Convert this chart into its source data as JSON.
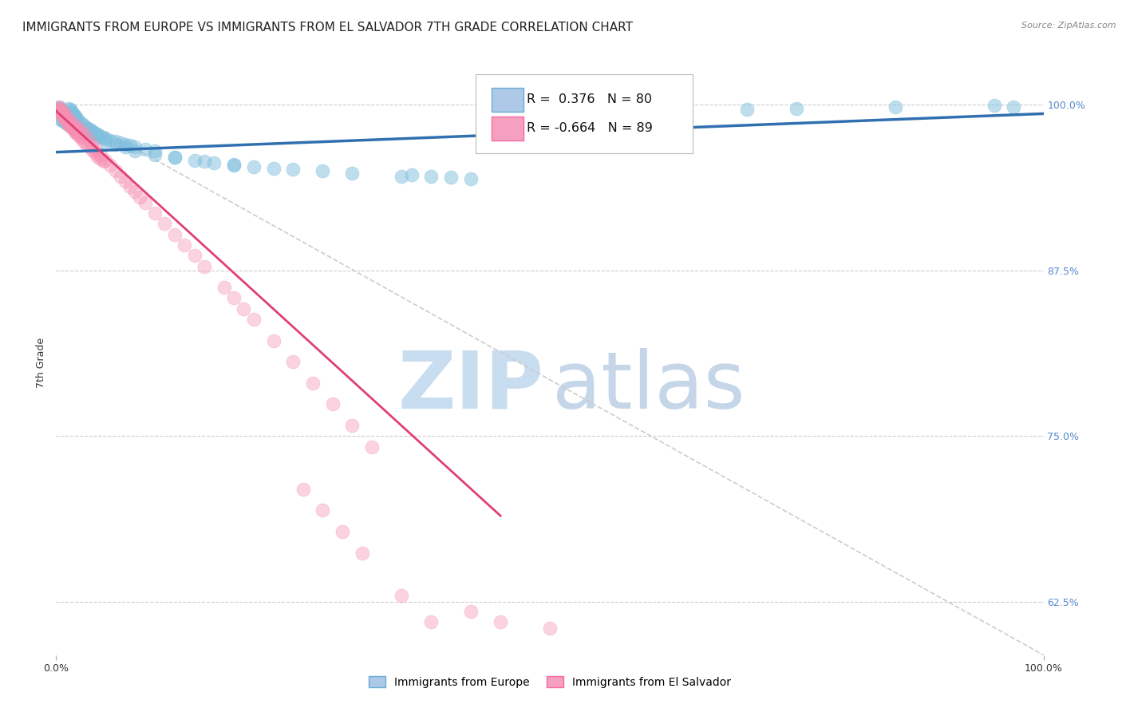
{
  "title": "IMMIGRANTS FROM EUROPE VS IMMIGRANTS FROM EL SALVADOR 7TH GRADE CORRELATION CHART",
  "source": "Source: ZipAtlas.com",
  "ylabel": "7th Grade",
  "xlim": [
    0.0,
    1.0
  ],
  "ylim": [
    0.585,
    1.025
  ],
  "yticks": [
    0.625,
    0.75,
    0.875,
    1.0
  ],
  "ytick_labels": [
    "62.5%",
    "75.0%",
    "87.5%",
    "100.0%"
  ],
  "xticks": [
    0.0,
    1.0
  ],
  "xtick_labels": [
    "0.0%",
    "100.0%"
  ],
  "blue_R": 0.376,
  "blue_N": 80,
  "pink_R": -0.664,
  "pink_N": 89,
  "blue_color": "#7fbfdf",
  "pink_color": "#f78fb3",
  "blue_line_color": "#3070b0",
  "pink_line_color": "#e04070",
  "diagonal_color": "#cccccc",
  "legend1": "Immigrants from Europe",
  "legend2": "Immigrants from El Salvador",
  "background_color": "#ffffff",
  "title_fontsize": 11,
  "axis_fontsize": 9,
  "tick_fontsize": 9,
  "blue_scatter_x": [
    0.003,
    0.004,
    0.005,
    0.006,
    0.007,
    0.008,
    0.009,
    0.01,
    0.011,
    0.012,
    0.013,
    0.014,
    0.015,
    0.016,
    0.017,
    0.018,
    0.019,
    0.02,
    0.021,
    0.022,
    0.025,
    0.027,
    0.03,
    0.032,
    0.034,
    0.036,
    0.038,
    0.04,
    0.042,
    0.045,
    0.048,
    0.05,
    0.055,
    0.06,
    0.065,
    0.07,
    0.075,
    0.08,
    0.09,
    0.1,
    0.12,
    0.14,
    0.16,
    0.18,
    0.2,
    0.22,
    0.24,
    0.27,
    0.3,
    0.35,
    0.004,
    0.006,
    0.008,
    0.01,
    0.012,
    0.015,
    0.018,
    0.02,
    0.025,
    0.03,
    0.035,
    0.04,
    0.05,
    0.06,
    0.07,
    0.08,
    0.1,
    0.12,
    0.15,
    0.18,
    0.6,
    0.7,
    0.75,
    0.85,
    0.95,
    0.97,
    0.4,
    0.42,
    0.38,
    0.36
  ],
  "blue_scatter_y": [
    0.998,
    0.997,
    0.996,
    0.995,
    0.994,
    0.993,
    0.992,
    0.991,
    0.99,
    0.989,
    0.997,
    0.996,
    0.995,
    0.994,
    0.993,
    0.992,
    0.991,
    0.99,
    0.989,
    0.988,
    0.986,
    0.985,
    0.983,
    0.982,
    0.981,
    0.98,
    0.979,
    0.978,
    0.977,
    0.976,
    0.975,
    0.974,
    0.973,
    0.972,
    0.971,
    0.97,
    0.969,
    0.968,
    0.966,
    0.965,
    0.96,
    0.958,
    0.956,
    0.955,
    0.953,
    0.952,
    0.951,
    0.95,
    0.948,
    0.946,
    0.989,
    0.988,
    0.987,
    0.986,
    0.985,
    0.984,
    0.983,
    0.982,
    0.98,
    0.979,
    0.977,
    0.975,
    0.972,
    0.97,
    0.968,
    0.965,
    0.962,
    0.96,
    0.957,
    0.954,
    0.995,
    0.996,
    0.997,
    0.998,
    0.999,
    0.998,
    0.945,
    0.944,
    0.946,
    0.947
  ],
  "pink_scatter_x": [
    0.002,
    0.003,
    0.004,
    0.005,
    0.006,
    0.007,
    0.008,
    0.009,
    0.01,
    0.011,
    0.012,
    0.013,
    0.014,
    0.015,
    0.016,
    0.017,
    0.018,
    0.019,
    0.02,
    0.022,
    0.025,
    0.027,
    0.03,
    0.032,
    0.035,
    0.038,
    0.04,
    0.042,
    0.045,
    0.048,
    0.005,
    0.007,
    0.009,
    0.011,
    0.013,
    0.015,
    0.018,
    0.02,
    0.023,
    0.026,
    0.003,
    0.005,
    0.007,
    0.009,
    0.011,
    0.013,
    0.016,
    0.019,
    0.022,
    0.025,
    0.028,
    0.032,
    0.036,
    0.04,
    0.045,
    0.05,
    0.055,
    0.06,
    0.065,
    0.07,
    0.075,
    0.08,
    0.085,
    0.09,
    0.1,
    0.11,
    0.12,
    0.13,
    0.14,
    0.15,
    0.17,
    0.18,
    0.19,
    0.2,
    0.22,
    0.24,
    0.26,
    0.28,
    0.3,
    0.32,
    0.25,
    0.27,
    0.29,
    0.31,
    0.35,
    0.38,
    0.42,
    0.45,
    0.5
  ],
  "pink_scatter_y": [
    0.997,
    0.996,
    0.995,
    0.994,
    0.993,
    0.992,
    0.991,
    0.99,
    0.989,
    0.988,
    0.987,
    0.986,
    0.985,
    0.984,
    0.983,
    0.982,
    0.981,
    0.98,
    0.979,
    0.977,
    0.975,
    0.973,
    0.971,
    0.969,
    0.967,
    0.965,
    0.963,
    0.961,
    0.959,
    0.957,
    0.993,
    0.991,
    0.989,
    0.987,
    0.985,
    0.983,
    0.981,
    0.979,
    0.977,
    0.975,
    0.998,
    0.996,
    0.994,
    0.992,
    0.99,
    0.988,
    0.986,
    0.984,
    0.982,
    0.98,
    0.978,
    0.974,
    0.97,
    0.966,
    0.962,
    0.958,
    0.954,
    0.95,
    0.946,
    0.942,
    0.938,
    0.934,
    0.93,
    0.926,
    0.918,
    0.91,
    0.902,
    0.894,
    0.886,
    0.878,
    0.862,
    0.854,
    0.846,
    0.838,
    0.822,
    0.806,
    0.79,
    0.774,
    0.758,
    0.742,
    0.71,
    0.694,
    0.678,
    0.662,
    0.63,
    0.61,
    0.618,
    0.61,
    0.605
  ]
}
